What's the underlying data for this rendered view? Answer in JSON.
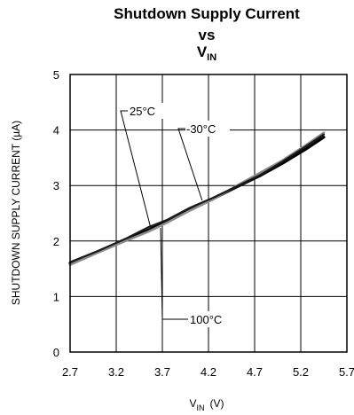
{
  "chart_data": {
    "type": "line",
    "title_line1": "Shutdown Supply Current",
    "title_line2": "vs",
    "title_line3_main": "V",
    "title_line3_sub": "IN",
    "xlabel_main": "V",
    "xlabel_sub": "IN",
    "xlabel_unit": "(V)",
    "ylabel": "SHUTDOWN SUPPLY CURRENT (µA)",
    "xlim": [
      2.7,
      5.7
    ],
    "ylim": [
      0,
      5
    ],
    "xticks": [
      "2.7",
      "3.2",
      "3.7",
      "4.2",
      "4.7",
      "5.2",
      "5.7"
    ],
    "yticks": [
      "0",
      "1",
      "2",
      "3",
      "4",
      "5"
    ],
    "grid": true,
    "series": [
      {
        "name": "25°C",
        "color": "#000000",
        "x": [
          2.7,
          3.0,
          3.3,
          3.55,
          3.75,
          4.0,
          4.25,
          4.5,
          4.75,
          5.0,
          5.25,
          5.45
        ],
        "y": [
          1.6,
          1.81,
          2.02,
          2.2,
          2.36,
          2.57,
          2.76,
          2.97,
          3.17,
          3.4,
          3.65,
          3.87
        ]
      },
      {
        "name": "-30°C",
        "color": "#8c8c8c",
        "x": [
          2.7,
          3.0,
          3.3,
          3.55,
          3.75,
          4.0,
          4.25,
          4.5,
          4.75,
          5.0,
          5.25,
          5.45
        ],
        "y": [
          1.57,
          1.79,
          2.0,
          2.17,
          2.33,
          2.55,
          2.75,
          2.99,
          3.22,
          3.45,
          3.72,
          3.95
        ]
      },
      {
        "name": "100°C",
        "color": "#1a1a1a",
        "x": [
          2.7,
          3.0,
          3.3,
          3.55,
          3.75,
          4.0,
          4.25,
          4.5,
          4.75,
          5.0,
          5.25,
          5.45
        ],
        "y": [
          1.62,
          1.82,
          2.04,
          2.25,
          2.38,
          2.6,
          2.78,
          2.98,
          3.18,
          3.43,
          3.7,
          3.92
        ]
      }
    ],
    "annotations": [
      {
        "text": "25°C",
        "series": "25°C"
      },
      {
        "text": "-30°C",
        "series": "-30°C"
      },
      {
        "text": "100°C",
        "series": "100°C"
      }
    ]
  }
}
